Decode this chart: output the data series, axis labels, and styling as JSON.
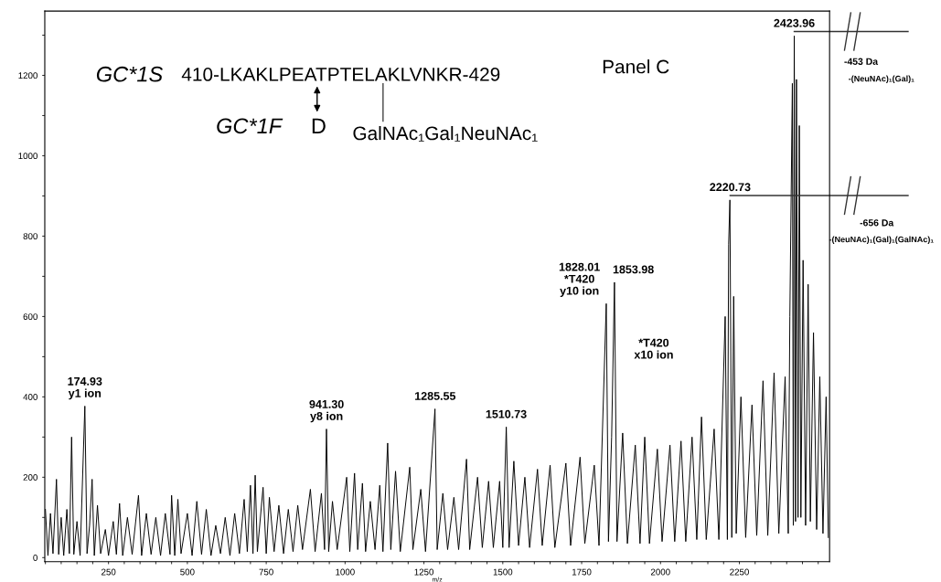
{
  "chart_data": {
    "type": "line",
    "xlabel": "m/z",
    "x": [
      50,
      58,
      66,
      74,
      85,
      92,
      100,
      108,
      118,
      126,
      133,
      140,
      150,
      160,
      175,
      182,
      190,
      198,
      205,
      215,
      225,
      240,
      250,
      265,
      275,
      285,
      295,
      310,
      325,
      345,
      355,
      370,
      385,
      400,
      415,
      430,
      445,
      450,
      460,
      470,
      480,
      500,
      515,
      530,
      545,
      560,
      575,
      590,
      605,
      620,
      635,
      650,
      665,
      680,
      690,
      700,
      708,
      715,
      722,
      740,
      750,
      760,
      775,
      790,
      805,
      820,
      835,
      850,
      865,
      890,
      905,
      925,
      935,
      941,
      948,
      960,
      975,
      1005,
      1015,
      1030,
      1040,
      1055,
      1065,
      1080,
      1095,
      1110,
      1120,
      1135,
      1145,
      1160,
      1175,
      1205,
      1215,
      1240,
      1255,
      1285,
      1292,
      1310,
      1325,
      1345,
      1360,
      1385,
      1395,
      1420,
      1435,
      1455,
      1470,
      1490,
      1500,
      1511,
      1520,
      1535,
      1550,
      1570,
      1585,
      1610,
      1625,
      1650,
      1665,
      1700,
      1715,
      1745,
      1760,
      1790,
      1805,
      1828,
      1835,
      1845,
      1854,
      1862,
      1880,
      1895,
      1920,
      1935,
      1950,
      1965,
      1990,
      2005,
      2030,
      2045,
      2065,
      2080,
      2100,
      2115,
      2130,
      2145,
      2170,
      2185,
      2205,
      2212,
      2216,
      2220,
      2226,
      2232,
      2240,
      2255,
      2270,
      2290,
      2305,
      2325,
      2340,
      2360,
      2375,
      2395,
      2405,
      2410,
      2418,
      2421,
      2424,
      2428,
      2431,
      2436,
      2440,
      2445,
      2452,
      2460,
      2468,
      2475,
      2485,
      2495,
      2505,
      2515,
      2525,
      2532
    ],
    "series": [
      {
        "color": "#000000",
        "values": [
          120,
          5,
          110,
          10,
          195,
          8,
          100,
          5,
          120,
          10,
          300,
          8,
          90,
          5,
          377,
          10,
          80,
          195,
          5,
          130,
          10,
          70,
          5,
          90,
          8,
          135,
          5,
          100,
          8,
          155,
          5,
          110,
          8,
          100,
          5,
          110,
          8,
          155,
          5,
          145,
          10,
          110,
          5,
          140,
          8,
          120,
          5,
          80,
          10,
          100,
          5,
          110,
          10,
          145,
          15,
          180,
          10,
          205,
          15,
          175,
          10,
          150,
          15,
          130,
          10,
          120,
          15,
          130,
          20,
          170,
          15,
          160,
          20,
          320,
          15,
          140,
          20,
          200,
          15,
          210,
          20,
          185,
          15,
          140,
          20,
          180,
          15,
          285,
          20,
          215,
          15,
          225,
          20,
          170,
          15,
          370,
          20,
          160,
          20,
          150,
          20,
          245,
          20,
          200,
          25,
          190,
          25,
          190,
          25,
          325,
          25,
          240,
          30,
          200,
          25,
          220,
          30,
          230,
          25,
          235,
          30,
          250,
          35,
          230,
          30,
          632,
          40,
          300,
          685,
          40,
          310,
          35,
          280,
          35,
          300,
          35,
          270,
          40,
          280,
          40,
          290,
          40,
          300,
          45,
          350,
          45,
          320,
          45,
          600,
          45,
          780,
          890,
          50,
          650,
          60,
          400,
          50,
          380,
          55,
          440,
          55,
          460,
          60,
          450,
          60,
          600,
          1180,
          80,
          1298,
          90,
          1190,
          100,
          1075,
          100,
          740,
          80,
          680,
          90,
          560,
          70,
          450,
          60,
          400,
          50
        ]
      }
    ],
    "xlim": [
      48,
      2536
    ],
    "ylim": [
      -10,
      1360
    ],
    "xticks": [
      250,
      500,
      750,
      1000,
      1250,
      1500,
      1750,
      2000,
      2250
    ],
    "yticks": [
      0,
      200,
      400,
      600,
      800,
      1000,
      1200
    ],
    "marker": "none",
    "line_style": "solid",
    "grid": false,
    "legend": false,
    "annotations": [
      "GC*1S",
      "410-LKAKLPEATPTELAKLVNKR-429",
      "GC*1F",
      "D",
      "GalNAc₁Gal₁NeuNAc₁",
      "Panel C",
      "-453 Da",
      "-(NeuNAc)₁(Gal)₁",
      "-656 Da",
      "-(NeuNAc)₁(Gal)₁(GalNAc)₁",
      "*T420\nx10 ion",
      {
        "text": "174.93\ny1 ion",
        "x": 174.93,
        "y": 377
      },
      {
        "text": "941.30\ny8 ion",
        "x": 941.3,
        "y": 320
      },
      {
        "text": "1285.55",
        "x": 1285.55,
        "y": 370
      },
      {
        "text": "1510.73",
        "x": 1510.73,
        "y": 325
      },
      {
        "text": "1828.01\n*T420\ny10 ion",
        "x": 1828.01,
        "y": 632
      },
      {
        "text": "1853.98",
        "x": 1853.98,
        "y": 685
      },
      {
        "text": "2220.73",
        "x": 2220.73,
        "y": 890
      },
      {
        "text": "2423.96",
        "x": 2423.96,
        "y": 1298
      }
    ]
  }
}
